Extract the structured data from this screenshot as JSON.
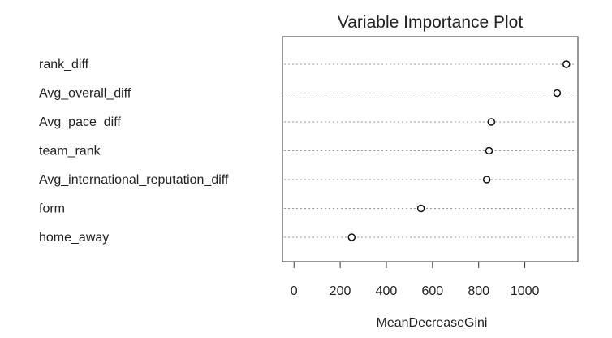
{
  "chart_data": {
    "type": "scatter",
    "title": "Variable Importance Plot",
    "xlabel": "MeanDecreaseGini",
    "ylabel": "",
    "xlim": [
      -50,
      1230
    ],
    "xticks": [
      "0",
      "200",
      "400",
      "600",
      "800",
      "1000"
    ],
    "grid": "dotted horizontal lines",
    "categories": [
      "rank_diff",
      "Avg_overall_diff",
      "Avg_pace_diff",
      "team_rank",
      "Avg_international_reputation_diff",
      "form",
      "home_away"
    ],
    "values": [
      1180,
      1140,
      855,
      845,
      835,
      550,
      250
    ]
  }
}
